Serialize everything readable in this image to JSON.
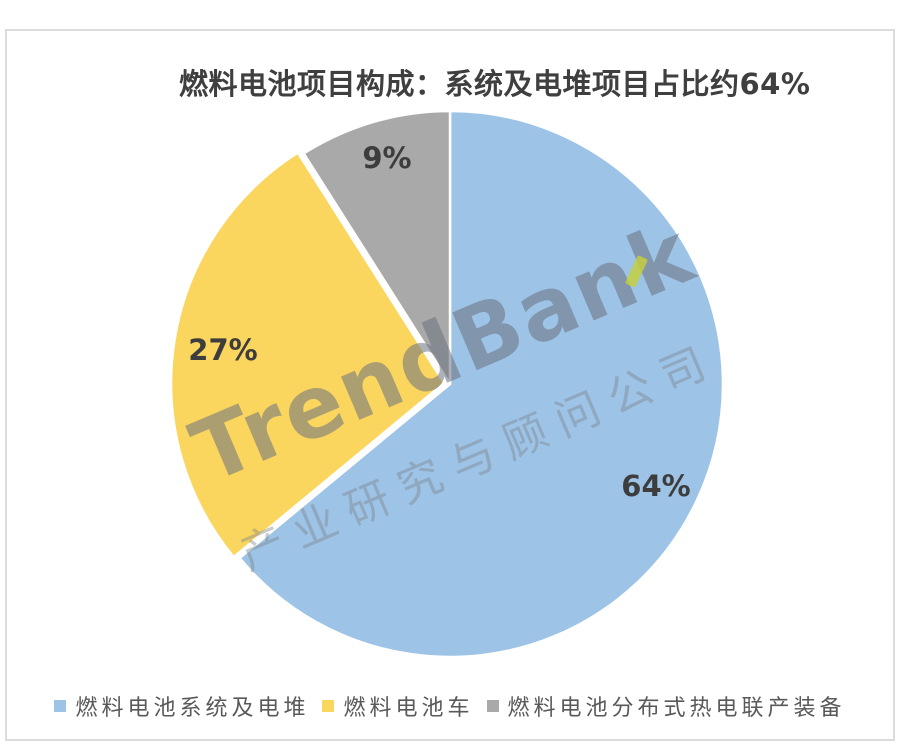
{
  "page": {
    "background": "#ffffff",
    "frame_border_color": "#dcdcdc"
  },
  "title": "燃料电池项目构成：系统及电堆项目占比约64%",
  "chart_data": {
    "type": "pie",
    "title": "燃料电池项目构成：系统及电堆项目占比约64%",
    "start_angle_deg": -90,
    "direction": "clockwise",
    "legend_position": "bottom",
    "categories": [
      "燃料电池系统及电堆",
      "燃料电池车",
      "燃料电池分布式热电联产装备"
    ],
    "values": [
      64,
      27,
      9
    ],
    "slices": [
      {
        "label": "燃料电池系统及电堆",
        "value": 64,
        "display": "64%",
        "color": "#9dc3e6",
        "exploded": false
      },
      {
        "label": "燃料电池车",
        "value": 27,
        "display": "27%",
        "color": "#fbd65f",
        "exploded": true
      },
      {
        "label": "燃料电池分布式热电联产装备",
        "value": 9,
        "display": "9%",
        "color": "#a9a9a9",
        "exploded": false
      }
    ],
    "data_label_color": "#3d3d3d",
    "slice_border_color": "#ffffff"
  },
  "watermark": {
    "brand": "TrendBank",
    "tagline": "产业研究与顾问公司",
    "accent_color": "#c8d036"
  }
}
